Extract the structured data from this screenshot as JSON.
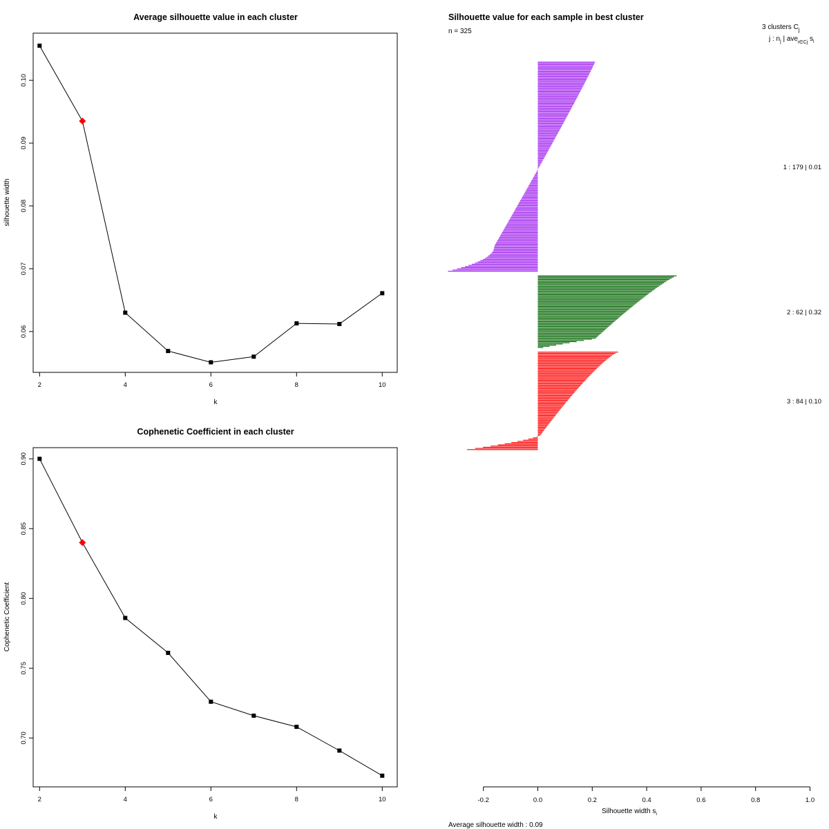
{
  "chart_data": [
    {
      "type": "line",
      "title": "Average silhouette value in each cluster",
      "xlabel": "k",
      "ylabel": "silhouette width",
      "x": [
        2,
        3,
        4,
        5,
        6,
        7,
        8,
        9,
        10
      ],
      "values": [
        0.1055,
        0.0935,
        0.063,
        0.0569,
        0.0551,
        0.056,
        0.0613,
        0.0612,
        0.0661
      ],
      "highlight_index": 1,
      "highlight_color": "#ff0000",
      "xlim": [
        1.85,
        10.35
      ],
      "ylim": [
        0.0535,
        0.1075
      ],
      "xticks": [
        2,
        4,
        6,
        8,
        10
      ],
      "yticks": [
        0.06,
        0.07,
        0.08,
        0.09,
        0.1
      ],
      "ytick_labels": [
        "0.06",
        "0.07",
        "0.08",
        "0.09",
        "0.10"
      ]
    },
    {
      "type": "line",
      "title": "Cophenetic Coefficient in each cluster",
      "xlabel": "k",
      "ylabel": "Cophenetic Coefficient",
      "x": [
        2,
        3,
        4,
        5,
        6,
        7,
        8,
        9,
        10
      ],
      "values": [
        0.9,
        0.84,
        0.786,
        0.761,
        0.726,
        0.716,
        0.708,
        0.691,
        0.673
      ],
      "highlight_index": 1,
      "highlight_color": "#ff0000",
      "xlim": [
        1.85,
        10.35
      ],
      "ylim": [
        0.665,
        0.908
      ],
      "xticks": [
        2,
        4,
        6,
        8,
        10
      ],
      "yticks": [
        0.7,
        0.75,
        0.8,
        0.85,
        0.9
      ],
      "ytick_labels": [
        "0.70",
        "0.75",
        "0.80",
        "0.85",
        "0.90"
      ]
    },
    {
      "type": "bar",
      "orientation": "horizontal",
      "title": "Silhouette value for each sample in best cluster",
      "n_label": "n = 325",
      "header_text": "3  clusters  C",
      "header_sub": "j",
      "subheader_text": "j :  n",
      "subheader_sub1": "j",
      "subheader_mid": " | ave",
      "subheader_sub2": "i∈Cj",
      "subheader_tail": " s",
      "subheader_sub3": "i",
      "xlabel": "Silhouette width s",
      "xlabel_sub": "i",
      "xlim": [
        -0.2,
        1.0
      ],
      "xticks": [
        -0.2,
        0.0,
        0.2,
        0.4,
        0.6,
        0.8,
        1.0
      ],
      "xtick_labels": [
        "-0.2",
        "0.0",
        "0.2",
        "0.4",
        "0.6",
        "0.8",
        "1.0"
      ],
      "footer": "Average silhouette width :  0.09",
      "clusters": [
        {
          "id": 1,
          "n": 179,
          "avg": 0.01,
          "label": "1 :   179  |  0.01",
          "color": "#a020f0",
          "max": 0.21,
          "min": -0.33
        },
        {
          "id": 2,
          "n": 62,
          "avg": 0.32,
          "label": "2 :   62  |  0.32",
          "color": "#006400",
          "max": 0.51,
          "min": 0.02
        },
        {
          "id": 3,
          "n": 84,
          "avg": 0.1,
          "label": "3 :   84  |  0.10",
          "color": "#ff0000",
          "max": 0.295,
          "min": -0.26
        }
      ]
    }
  ]
}
